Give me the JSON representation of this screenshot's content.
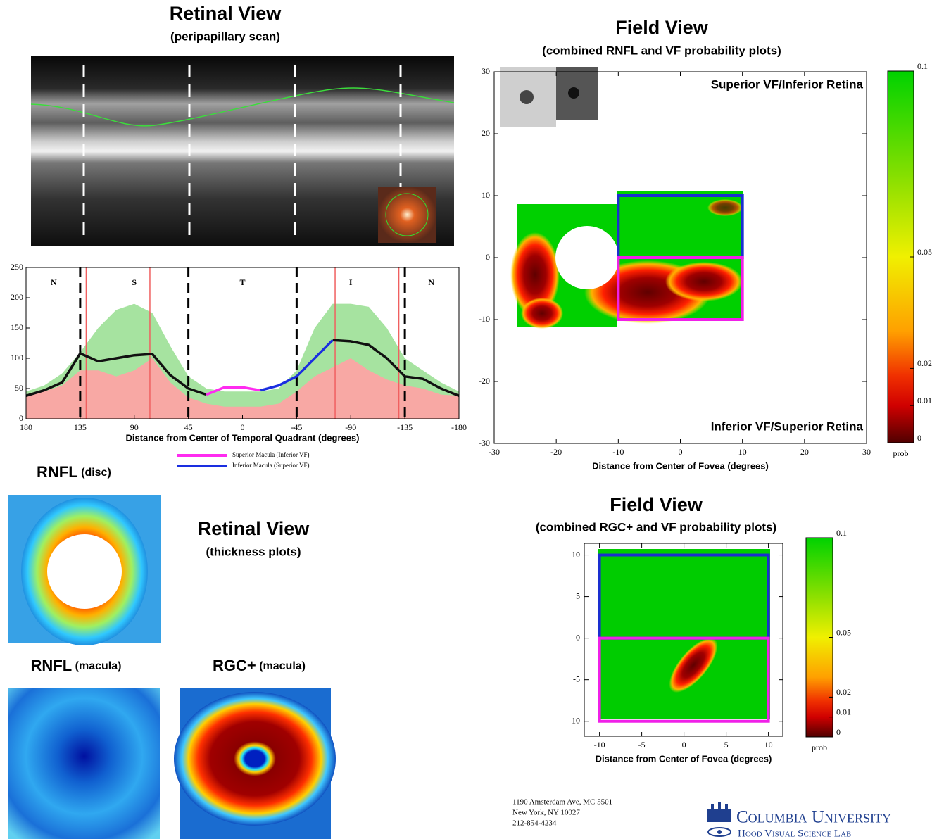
{
  "header": {
    "title": "Retinal View",
    "subtitle": "(peripapillary scan)"
  },
  "chart_data": [
    {
      "type": "line",
      "xlabel": "Distance from Center of Temporal Quadrant (degrees)",
      "x": [
        180,
        165,
        150,
        135,
        120,
        105,
        90,
        75,
        60,
        45,
        30,
        15,
        0,
        -15,
        -30,
        -45,
        -60,
        -75,
        -90,
        -105,
        -120,
        -135,
        -150,
        -165,
        -180
      ],
      "xlim": [
        180,
        -180
      ],
      "ylim": [
        0,
        250
      ],
      "xticks": [
        180,
        135,
        90,
        45,
        0,
        -45,
        -90,
        -135,
        -180
      ],
      "yticks": [
        0,
        50,
        100,
        150,
        200,
        250
      ],
      "bands": [
        {
          "color": "#a6e3a0",
          "values": [
            45,
            55,
            75,
            110,
            150,
            180,
            190,
            175,
            120,
            70,
            50,
            45,
            45,
            45,
            50,
            80,
            150,
            190,
            190,
            185,
            150,
            100,
            80,
            60,
            45
          ]
        },
        {
          "color": "#f8a8a4",
          "values": [
            38,
            45,
            55,
            80,
            80,
            70,
            80,
            100,
            60,
            35,
            25,
            20,
            20,
            20,
            25,
            45,
            70,
            85,
            100,
            80,
            65,
            55,
            50,
            40,
            38
          ]
        }
      ],
      "series": [
        {
          "color": "#111111",
          "values": [
            38,
            47,
            60,
            108,
            95,
            100,
            105,
            107,
            72,
            50,
            40,
            null,
            null,
            null,
            null,
            null,
            null,
            130,
            128,
            122,
            100,
            70,
            66,
            50,
            38
          ]
        },
        {
          "name": "Superior Macula (Inferior VF)",
          "color": "#ff2bf0",
          "values": [
            null,
            null,
            null,
            null,
            null,
            null,
            null,
            null,
            null,
            null,
            40,
            52,
            52,
            47,
            null,
            null,
            null,
            null,
            null,
            null,
            null,
            null,
            null,
            null,
            null
          ]
        },
        {
          "name": "Inferior Macula (Superior VF)",
          "color": "#1a2ee0",
          "values": [
            null,
            null,
            null,
            null,
            null,
            null,
            null,
            null,
            null,
            null,
            null,
            null,
            null,
            47,
            55,
            70,
            100,
            130,
            null,
            null,
            null,
            null,
            null,
            null,
            null
          ]
        }
      ],
      "dividers": [
        135,
        45,
        -45,
        -135
      ],
      "markers": [
        130,
        77,
        -77,
        -130
      ],
      "sectors": [
        {
          "label": "N",
          "x": 157
        },
        {
          "label": "S",
          "x": 90
        },
        {
          "label": "T",
          "x": 0
        },
        {
          "label": "I",
          "x": -90
        },
        {
          "label": "N",
          "x": -157
        }
      ]
    },
    {
      "type": "heatmap",
      "title": "Field View",
      "subtitle": "(combined RNFL and VF probability plots)",
      "xlabel": "Distance from Center of Fovea (degrees)",
      "xlim": [
        -30,
        30
      ],
      "ylim": [
        -30,
        30
      ],
      "xticks": [
        -30,
        -20,
        -10,
        0,
        10,
        20,
        30
      ],
      "yticks": [
        -30,
        -20,
        -10,
        0,
        10,
        20,
        30
      ],
      "annotations": [
        "Superior VF/Inferior Retina",
        "Inferior VF/Superior Retina"
      ],
      "regions": [
        {
          "color": "#1a2ed0",
          "x": [
            -10,
            10
          ],
          "y": [
            0,
            10
          ]
        },
        {
          "color": "#f020e8",
          "x": [
            -10,
            10
          ],
          "y": [
            -10,
            0
          ]
        }
      ],
      "colorbar": {
        "label": "prob",
        "lim": [
          0,
          0.1
        ],
        "ticks": [
          0.1,
          0.05,
          0.02,
          0.01,
          0
        ]
      }
    },
    {
      "type": "heatmap",
      "title": "Field View",
      "subtitle": "(combined RGC+ and VF probability plots)",
      "xlabel": "Distance from Center of Fovea (degrees)",
      "xlim": [
        -11.8,
        11.7
      ],
      "ylim": [
        -11.8,
        11.4
      ],
      "xticks": [
        -10,
        -5,
        0,
        5,
        10
      ],
      "yticks": [
        -10,
        -5,
        0,
        5,
        10
      ],
      "regions": [
        {
          "color": "#1a2ed0",
          "x": [
            -10,
            10
          ],
          "y": [
            0,
            10
          ]
        },
        {
          "color": "#f020e8",
          "x": [
            -10,
            10
          ],
          "y": [
            -10,
            0
          ]
        }
      ],
      "colorbar": {
        "label": "prob",
        "lim": [
          0,
          0.1
        ],
        "ticks": [
          0.1,
          0.05,
          0.02,
          0.01,
          0
        ]
      }
    }
  ],
  "thickness_plots": {
    "title": "Retinal View",
    "subtitle": "(thickness plots)",
    "panels": [
      {
        "label": "RNFL",
        "qualifier": "(disc)"
      },
      {
        "label": "RNFL",
        "qualifier": "(macula)"
      },
      {
        "label": "RGC+",
        "qualifier": "(macula)"
      }
    ]
  },
  "footer": {
    "address": [
      "1190 Amsterdam Ave, MC 5501",
      "New York, NY 10027",
      "212-854-4234"
    ],
    "logo": {
      "name": "Columbia University",
      "lab": "Hood Visual Science Lab"
    }
  }
}
